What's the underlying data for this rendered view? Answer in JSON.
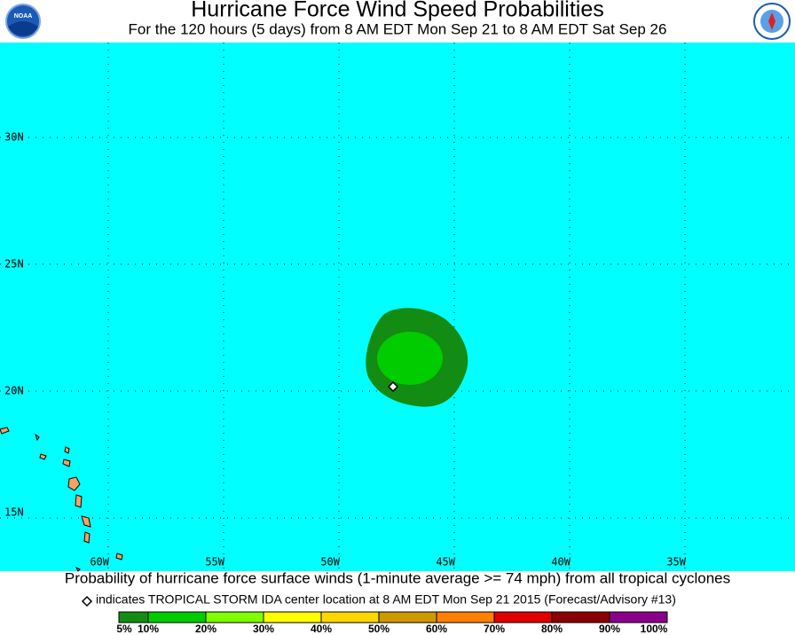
{
  "header": {
    "title": "Hurricane Force Wind Speed Probabilities",
    "subtitle": "For the 120 hours (5 days) from 8 AM EDT Mon Sep 21 to 8 AM EDT Sat Sep 26",
    "logo_left": "NOAA"
  },
  "map": {
    "lat_labels": [
      "30N",
      "25N",
      "20N",
      "15N"
    ],
    "lon_labels": [
      "60W",
      "55W",
      "50W",
      "45W",
      "40W",
      "35W"
    ]
  },
  "footer": {
    "caption": "Probability of hurricane force surface winds (1-minute average >= 74 mph) from all tropical cyclones",
    "note": "indicates TROPICAL STORM IDA center location at 8 AM EDT Mon Sep 21 2015 (Forecast/Advisory #13)",
    "scale_labels": [
      "5%",
      "10%",
      "20%",
      "30%",
      "40%",
      "50%",
      "60%",
      "70%",
      "80%",
      "90%",
      "100%"
    ],
    "scale_colors": [
      "#138c13",
      "#00cc00",
      "#7fff00",
      "#ffff00",
      "#ffd700",
      "#cc9900",
      "#ff8000",
      "#e00000",
      "#8b0000",
      "#8b008b"
    ]
  }
}
